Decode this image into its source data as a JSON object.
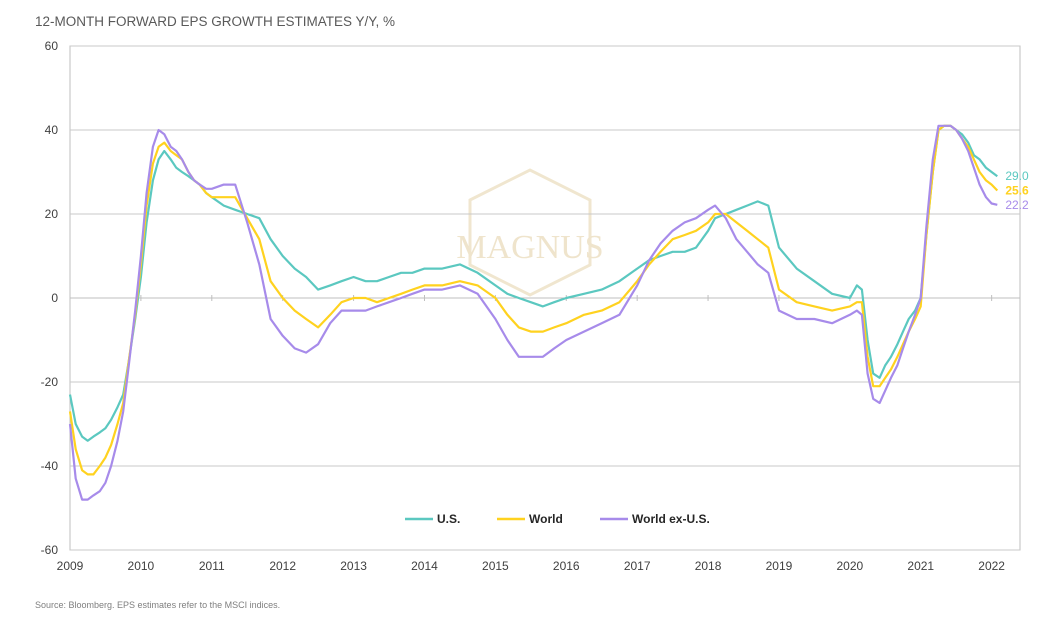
{
  "title": "12-MONTH FORWARD EPS GROWTH ESTIMATES Y/Y, %",
  "source": "Source: Bloomberg. EPS estimates refer to the MSCI indices.",
  "watermark": "MAGNUS",
  "chart_data": {
    "type": "line",
    "title": "12-MONTH FORWARD EPS GROWTH ESTIMATES Y/Y, %",
    "xlabel": "",
    "ylabel": "",
    "xlim": [
      2009.0,
      2022.4
    ],
    "ylim": [
      -60,
      60
    ],
    "y_ticks": [
      "60",
      "40",
      "20",
      "0",
      "-20",
      "-40",
      "-60"
    ],
    "x_tick_labels": [
      "2009",
      "2010",
      "2011",
      "2012",
      "2013",
      "2014",
      "2015",
      "2016",
      "2017",
      "2018",
      "2019",
      "2020",
      "2021",
      "2022"
    ],
    "grid": "horizontal",
    "legend_position": "bottom-center",
    "series": [
      {
        "name": "U.S.",
        "color": "#5BC8C0",
        "end_label": "29.0",
        "x": [
          2009.0,
          2009.08,
          2009.17,
          2009.25,
          2009.33,
          2009.42,
          2009.5,
          2009.58,
          2009.67,
          2009.75,
          2009.83,
          2009.92,
          2010.0,
          2010.08,
          2010.17,
          2010.25,
          2010.33,
          2010.42,
          2010.5,
          2010.58,
          2010.67,
          2010.75,
          2010.83,
          2010.92,
          2011.0,
          2011.17,
          2011.33,
          2011.5,
          2011.67,
          2011.83,
          2012.0,
          2012.17,
          2012.33,
          2012.5,
          2012.67,
          2012.83,
          2013.0,
          2013.17,
          2013.33,
          2013.5,
          2013.67,
          2013.83,
          2014.0,
          2014.25,
          2014.5,
          2014.75,
          2015.0,
          2015.17,
          2015.33,
          2015.5,
          2015.67,
          2015.83,
          2016.0,
          2016.25,
          2016.5,
          2016.75,
          2017.0,
          2017.17,
          2017.33,
          2017.5,
          2017.67,
          2017.83,
          2018.0,
          2018.1,
          2018.25,
          2018.4,
          2018.55,
          2018.7,
          2018.85,
          2019.0,
          2019.25,
          2019.5,
          2019.75,
          2020.0,
          2020.1,
          2020.17,
          2020.25,
          2020.33,
          2020.42,
          2020.5,
          2020.58,
          2020.67,
          2020.75,
          2020.83,
          2020.92,
          2021.0,
          2021.08,
          2021.17,
          2021.25,
          2021.33,
          2021.42,
          2021.5,
          2021.58,
          2021.67,
          2021.75,
          2021.83,
          2021.92,
          2022.0,
          2022.08
        ],
        "values": [
          -23,
          -30,
          -33,
          -34,
          -33,
          -32,
          -31,
          -29,
          -26,
          -23,
          -15,
          -5,
          5,
          18,
          28,
          33,
          35,
          33,
          31,
          30,
          29,
          28,
          27,
          25,
          24,
          22,
          21,
          20,
          19,
          14,
          10,
          7,
          5,
          2,
          3,
          4,
          5,
          4,
          4,
          5,
          6,
          6,
          7,
          7,
          8,
          6,
          3,
          1,
          0,
          -1,
          -2,
          -1,
          0,
          1,
          2,
          4,
          7,
          9,
          10,
          11,
          11,
          12,
          16,
          19,
          20,
          21,
          22,
          23,
          22,
          12,
          7,
          4,
          1,
          0,
          3,
          2,
          -10,
          -18,
          -19,
          -16,
          -14,
          -11,
          -8,
          -5,
          -3,
          0,
          15,
          30,
          40,
          41,
          41,
          40,
          39,
          37,
          34,
          33,
          31,
          30,
          29
        ]
      },
      {
        "name": "World",
        "color": "#FFD21F",
        "end_label": "25.6",
        "x": [
          2009.0,
          2009.08,
          2009.17,
          2009.25,
          2009.33,
          2009.42,
          2009.5,
          2009.58,
          2009.67,
          2009.75,
          2009.83,
          2009.92,
          2010.0,
          2010.08,
          2010.17,
          2010.25,
          2010.33,
          2010.42,
          2010.5,
          2010.58,
          2010.67,
          2010.75,
          2010.83,
          2010.92,
          2011.0,
          2011.17,
          2011.33,
          2011.5,
          2011.67,
          2011.83,
          2012.0,
          2012.17,
          2012.33,
          2012.5,
          2012.67,
          2012.83,
          2013.0,
          2013.17,
          2013.33,
          2013.5,
          2013.67,
          2013.83,
          2014.0,
          2014.25,
          2014.5,
          2014.75,
          2015.0,
          2015.17,
          2015.33,
          2015.5,
          2015.67,
          2015.83,
          2016.0,
          2016.25,
          2016.5,
          2016.75,
          2017.0,
          2017.17,
          2017.33,
          2017.5,
          2017.67,
          2017.83,
          2018.0,
          2018.1,
          2018.25,
          2018.4,
          2018.55,
          2018.7,
          2018.85,
          2019.0,
          2019.25,
          2019.5,
          2019.75,
          2020.0,
          2020.1,
          2020.17,
          2020.25,
          2020.33,
          2020.42,
          2020.5,
          2020.58,
          2020.67,
          2020.75,
          2020.83,
          2020.92,
          2021.0,
          2021.08,
          2021.17,
          2021.25,
          2021.33,
          2021.42,
          2021.5,
          2021.58,
          2021.67,
          2021.75,
          2021.83,
          2021.92,
          2022.0,
          2022.08
        ],
        "values": [
          -27,
          -36,
          -41,
          -42,
          -42,
          -40,
          -38,
          -35,
          -30,
          -25,
          -15,
          -4,
          8,
          22,
          32,
          36,
          37,
          35,
          34,
          33,
          30,
          28,
          27,
          25,
          24,
          24,
          24,
          19,
          14,
          4,
          0,
          -3,
          -5,
          -7,
          -4,
          -1,
          0,
          0,
          -1,
          0,
          1,
          2,
          3,
          3,
          4,
          3,
          0,
          -4,
          -7,
          -8,
          -8,
          -7,
          -6,
          -4,
          -3,
          -1,
          4,
          8,
          11,
          14,
          15,
          16,
          18,
          20,
          20,
          18,
          16,
          14,
          12,
          2,
          -1,
          -2,
          -3,
          -2,
          -1,
          -1,
          -14,
          -21,
          -21,
          -19,
          -17,
          -14,
          -11,
          -8,
          -5,
          -2,
          15,
          30,
          40,
          41,
          41,
          40,
          38,
          36,
          33,
          30,
          28,
          27,
          25.6
        ]
      },
      {
        "name": "World ex-U.S.",
        "color": "#A78BEA",
        "end_label": "22.2",
        "x": [
          2009.0,
          2009.08,
          2009.17,
          2009.25,
          2009.33,
          2009.42,
          2009.5,
          2009.58,
          2009.67,
          2009.75,
          2009.83,
          2009.92,
          2010.0,
          2010.08,
          2010.17,
          2010.25,
          2010.33,
          2010.42,
          2010.5,
          2010.58,
          2010.67,
          2010.75,
          2010.83,
          2010.92,
          2011.0,
          2011.17,
          2011.33,
          2011.5,
          2011.67,
          2011.83,
          2012.0,
          2012.17,
          2012.33,
          2012.5,
          2012.67,
          2012.83,
          2013.0,
          2013.17,
          2013.33,
          2013.5,
          2013.67,
          2013.83,
          2014.0,
          2014.25,
          2014.5,
          2014.75,
          2015.0,
          2015.17,
          2015.33,
          2015.5,
          2015.67,
          2015.83,
          2016.0,
          2016.25,
          2016.5,
          2016.75,
          2017.0,
          2017.17,
          2017.33,
          2017.5,
          2017.67,
          2017.83,
          2018.0,
          2018.1,
          2018.25,
          2018.4,
          2018.55,
          2018.7,
          2018.85,
          2019.0,
          2019.25,
          2019.5,
          2019.75,
          2020.0,
          2020.1,
          2020.17,
          2020.25,
          2020.33,
          2020.42,
          2020.5,
          2020.58,
          2020.67,
          2020.75,
          2020.83,
          2020.92,
          2021.0,
          2021.08,
          2021.17,
          2021.25,
          2021.33,
          2021.42,
          2021.5,
          2021.58,
          2021.67,
          2021.75,
          2021.83,
          2021.92,
          2022.0,
          2022.08
        ],
        "values": [
          -30,
          -43,
          -48,
          -48,
          -47,
          -46,
          -44,
          -40,
          -34,
          -27,
          -16,
          -3,
          10,
          25,
          36,
          40,
          39,
          36,
          35,
          33,
          30,
          28,
          27,
          26,
          26,
          27,
          27,
          18,
          8,
          -5,
          -9,
          -12,
          -13,
          -11,
          -6,
          -3,
          -3,
          -3,
          -2,
          -1,
          0,
          1,
          2,
          2,
          3,
          1,
          -5,
          -10,
          -14,
          -14,
          -14,
          -12,
          -10,
          -8,
          -6,
          -4,
          3,
          9,
          13,
          16,
          18,
          19,
          21,
          22,
          19,
          14,
          11,
          8,
          6,
          -3,
          -5,
          -5,
          -6,
          -4,
          -3,
          -4,
          -18,
          -24,
          -25,
          -22,
          -19,
          -16,
          -12,
          -8,
          -4,
          0,
          17,
          33,
          41,
          41,
          41,
          40,
          38,
          35,
          31,
          27,
          24,
          22.5,
          22.2
        ]
      }
    ]
  }
}
